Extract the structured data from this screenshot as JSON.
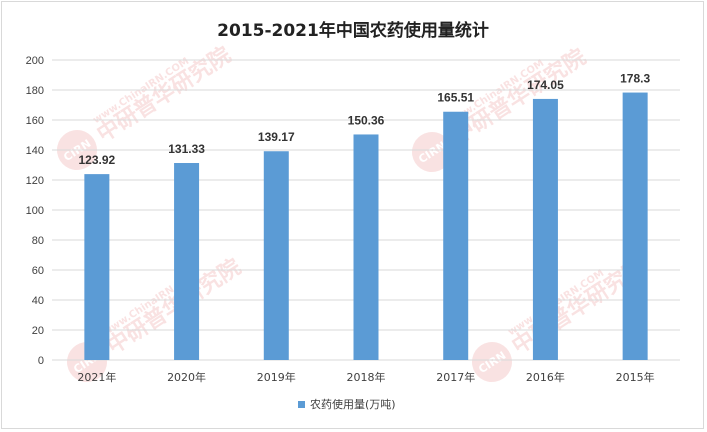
{
  "chart_data": {
    "type": "bar",
    "title": "2015-2021年中国农药使用量统计",
    "categories": [
      "2021年",
      "2020年",
      "2019年",
      "2018年",
      "2017年",
      "2016年",
      "2015年"
    ],
    "series": [
      {
        "name": "农药使用量(万吨)",
        "values": [
          123.92,
          131.33,
          139.17,
          150.36,
          165.51,
          174.05,
          178.3
        ],
        "labels": [
          "123.92",
          "131.33",
          "139.17",
          "150.36",
          "165.51",
          "174.05",
          "178.3"
        ]
      }
    ],
    "ylim": [
      0,
      200
    ],
    "yticks": [
      0,
      20,
      40,
      60,
      80,
      100,
      120,
      140,
      160,
      180,
      200
    ],
    "grid": true,
    "legend_position": "bottom",
    "bar_color": "#5b9bd5"
  },
  "watermark": {
    "brand": "中研普华研究院",
    "url": "www.ChinaIRN.COM",
    "badge": "CIRN"
  }
}
